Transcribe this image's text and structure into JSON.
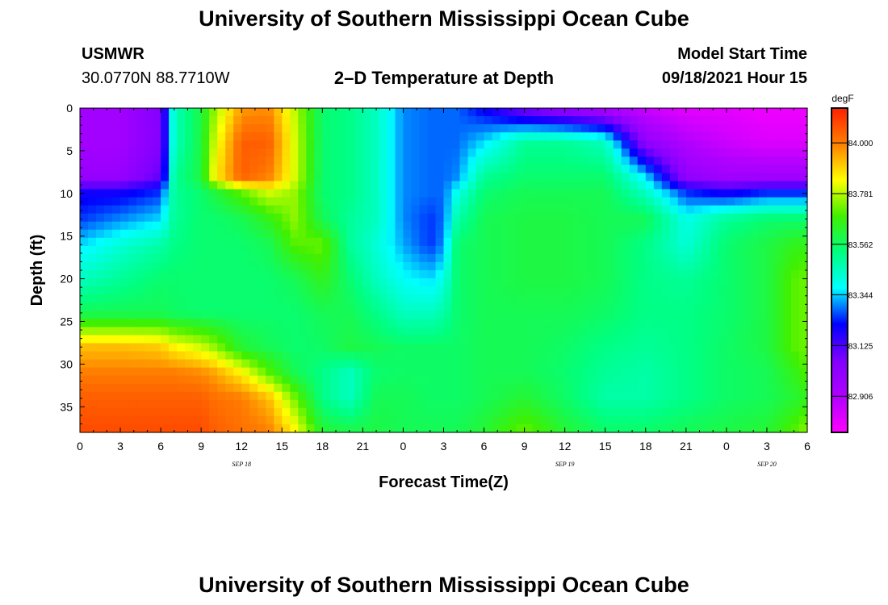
{
  "header": {
    "top_title": "University of Southern Mississippi Ocean Cube",
    "station": "USMWR",
    "coords": "30.0770N  88.7710W",
    "plot_title": "2–D Temperature at Depth",
    "model_start_label": "Model Start Time",
    "model_start_value": "09/18/2021 Hour 15",
    "bottom_title": "University of Southern Mississippi Ocean Cube"
  },
  "colors": {
    "scale": [
      "#ff00ff",
      "#b000ff",
      "#8000ff",
      "#0000ff",
      "#00ffff",
      "#00ff80",
      "#40f000",
      "#ffff00",
      "#ff8000",
      "#ff2000"
    ]
  },
  "chart_data": {
    "type": "heatmap",
    "title": "2–D Temperature at Depth",
    "xlabel": "Forecast Time(Z)",
    "ylabel": "Depth (ft)",
    "x_ticks": [
      "0",
      "3",
      "6",
      "9",
      "12",
      "15",
      "18",
      "21",
      "0",
      "3",
      "6",
      "9",
      "12",
      "15",
      "18",
      "21",
      "0",
      "3",
      "6"
    ],
    "date_labels": [
      {
        "label": "SEP 18",
        "at_hour": 12
      },
      {
        "label": "SEP 19",
        "at_hour": 36
      },
      {
        "label": "SEP 20",
        "at_hour": 51
      }
    ],
    "xlim_hours": [
      0,
      54
    ],
    "y_ticks": [
      0,
      5,
      10,
      15,
      20,
      25,
      30,
      35
    ],
    "ylim": [
      0,
      38
    ],
    "colorbar": {
      "unit": "degF",
      "labels": [
        "84.000",
        "83.781",
        "83.562",
        "83.344",
        "83.125",
        "82.906"
      ],
      "range": [
        82.75,
        84.15
      ]
    },
    "hours": [
      0,
      3,
      6,
      7,
      9,
      10,
      12,
      14,
      16,
      18,
      20,
      22,
      24,
      26,
      27,
      28,
      30,
      33,
      36,
      39,
      42,
      45,
      48,
      51,
      53,
      54
    ],
    "depths": [
      0,
      4,
      8,
      10,
      13,
      16,
      20,
      24,
      28,
      31,
      34,
      38
    ],
    "values": [
      [
        82.95,
        82.95,
        83.05,
        83.45,
        83.6,
        83.75,
        83.96,
        83.98,
        83.78,
        83.55,
        83.52,
        83.45,
        83.3,
        83.28,
        83.28,
        83.28,
        83.2,
        83.05,
        82.98,
        82.9,
        82.85,
        82.8,
        82.8,
        82.78,
        82.78,
        82.78
      ],
      [
        82.95,
        82.95,
        83.05,
        83.45,
        83.6,
        83.8,
        84.05,
        84.05,
        83.8,
        83.55,
        83.52,
        83.45,
        83.3,
        83.28,
        83.28,
        83.28,
        83.35,
        83.5,
        83.5,
        83.45,
        83.0,
        82.9,
        82.85,
        82.82,
        82.82,
        82.82
      ],
      [
        82.98,
        82.98,
        83.1,
        83.5,
        83.6,
        83.85,
        84.05,
        84.0,
        83.8,
        83.55,
        83.52,
        83.45,
        83.3,
        83.28,
        83.28,
        83.3,
        83.5,
        83.55,
        83.55,
        83.55,
        83.35,
        83.0,
        82.95,
        82.95,
        82.95,
        82.95
      ],
      [
        83.2,
        83.2,
        83.25,
        83.5,
        83.55,
        83.6,
        83.7,
        83.8,
        83.75,
        83.55,
        83.52,
        83.45,
        83.3,
        83.28,
        83.28,
        83.4,
        83.55,
        83.58,
        83.58,
        83.58,
        83.45,
        83.25,
        83.2,
        83.25,
        83.25,
        83.25
      ],
      [
        83.25,
        83.3,
        83.35,
        83.5,
        83.55,
        83.55,
        83.58,
        83.65,
        83.75,
        83.58,
        83.5,
        83.45,
        83.3,
        83.25,
        83.28,
        83.48,
        83.58,
        83.6,
        83.6,
        83.58,
        83.58,
        83.4,
        83.5,
        83.55,
        83.55,
        83.55
      ],
      [
        83.35,
        83.42,
        83.48,
        83.52,
        83.55,
        83.55,
        83.55,
        83.58,
        83.7,
        83.72,
        83.5,
        83.42,
        83.32,
        83.25,
        83.3,
        83.55,
        83.58,
        83.6,
        83.6,
        83.58,
        83.52,
        83.42,
        83.55,
        83.6,
        83.65,
        83.65
      ],
      [
        83.45,
        83.5,
        83.55,
        83.55,
        83.55,
        83.55,
        83.55,
        83.55,
        83.58,
        83.65,
        83.55,
        83.45,
        83.38,
        83.35,
        83.4,
        83.55,
        83.58,
        83.6,
        83.6,
        83.58,
        83.52,
        83.5,
        83.55,
        83.6,
        83.7,
        83.72
      ],
      [
        83.58,
        83.58,
        83.58,
        83.56,
        83.55,
        83.55,
        83.55,
        83.55,
        83.55,
        83.58,
        83.58,
        83.52,
        83.45,
        83.45,
        83.48,
        83.55,
        83.58,
        83.58,
        83.58,
        83.56,
        83.52,
        83.52,
        83.55,
        83.6,
        83.7,
        83.72
      ],
      [
        83.92,
        83.92,
        83.9,
        83.85,
        83.8,
        83.75,
        83.62,
        83.58,
        83.55,
        83.56,
        83.6,
        83.58,
        83.56,
        83.56,
        83.56,
        83.56,
        83.58,
        83.58,
        83.56,
        83.52,
        83.5,
        83.52,
        83.56,
        83.6,
        83.7,
        83.72
      ],
      [
        84.0,
        84.0,
        84.0,
        84.0,
        83.98,
        83.95,
        83.85,
        83.7,
        83.58,
        83.52,
        83.45,
        83.55,
        83.56,
        83.56,
        83.56,
        83.56,
        83.58,
        83.58,
        83.55,
        83.5,
        83.48,
        83.52,
        83.56,
        83.58,
        83.65,
        83.7
      ],
      [
        84.05,
        84.05,
        84.05,
        84.05,
        84.05,
        84.02,
        84.0,
        83.92,
        83.72,
        83.52,
        83.45,
        83.58,
        83.58,
        83.56,
        83.56,
        83.56,
        83.58,
        83.62,
        83.56,
        83.48,
        83.48,
        83.52,
        83.56,
        83.58,
        83.62,
        83.65
      ],
      [
        84.08,
        84.08,
        84.08,
        84.08,
        84.08,
        84.05,
        84.02,
        84.0,
        83.85,
        83.62,
        83.6,
        83.6,
        83.58,
        83.58,
        83.58,
        83.58,
        83.62,
        83.72,
        83.62,
        83.56,
        83.56,
        83.58,
        83.6,
        83.62,
        83.7,
        83.75
      ]
    ]
  }
}
